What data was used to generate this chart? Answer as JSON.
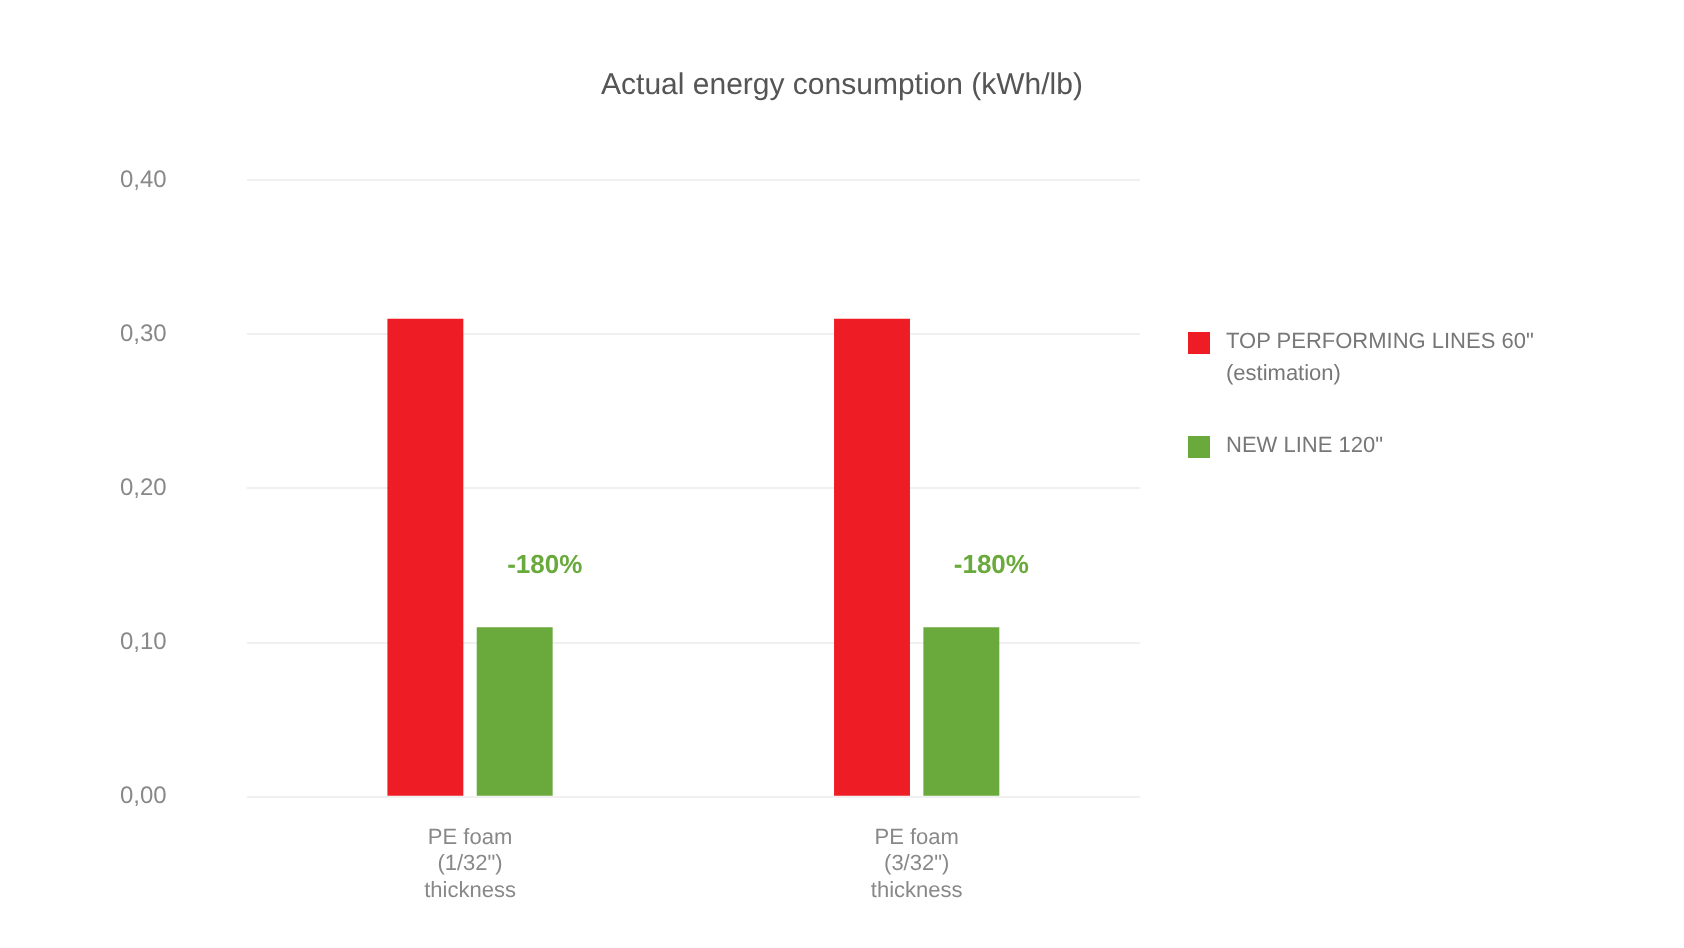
{
  "chart_data": {
    "type": "bar",
    "title": "Actual energy consumption (kWh/lb)",
    "categories": [
      "PE foam\n(1/32\")\nthickness",
      "PE foam\n(3/32\")\nthickness"
    ],
    "series": [
      {
        "name": "TOP PERFORMING LINES 60\"\n(estimation)",
        "color": "#ee1c24",
        "values": [
          0.31,
          0.31
        ]
      },
      {
        "name": "NEW LINE 120\"",
        "color": "#6aaa3c",
        "values": [
          0.11,
          0.11
        ]
      }
    ],
    "ylim": [
      0,
      0.4
    ],
    "yticks": [
      {
        "value": 0,
        "label": "0,00"
      },
      {
        "value": 0.1,
        "label": "0,10"
      },
      {
        "value": 0.2,
        "label": "0,20"
      },
      {
        "value": 0.3,
        "label": "0,30"
      },
      {
        "value": 0.4,
        "label": "0,40"
      }
    ],
    "annotations": [
      {
        "text": "-180%",
        "x": "PE foam\n(1/32\")\nthickness",
        "y": 0.15
      },
      {
        "text": "-180%",
        "x": "PE foam\n(3/32\")\nthickness",
        "y": 0.15
      }
    ],
    "grid": "y",
    "legend": "right"
  }
}
